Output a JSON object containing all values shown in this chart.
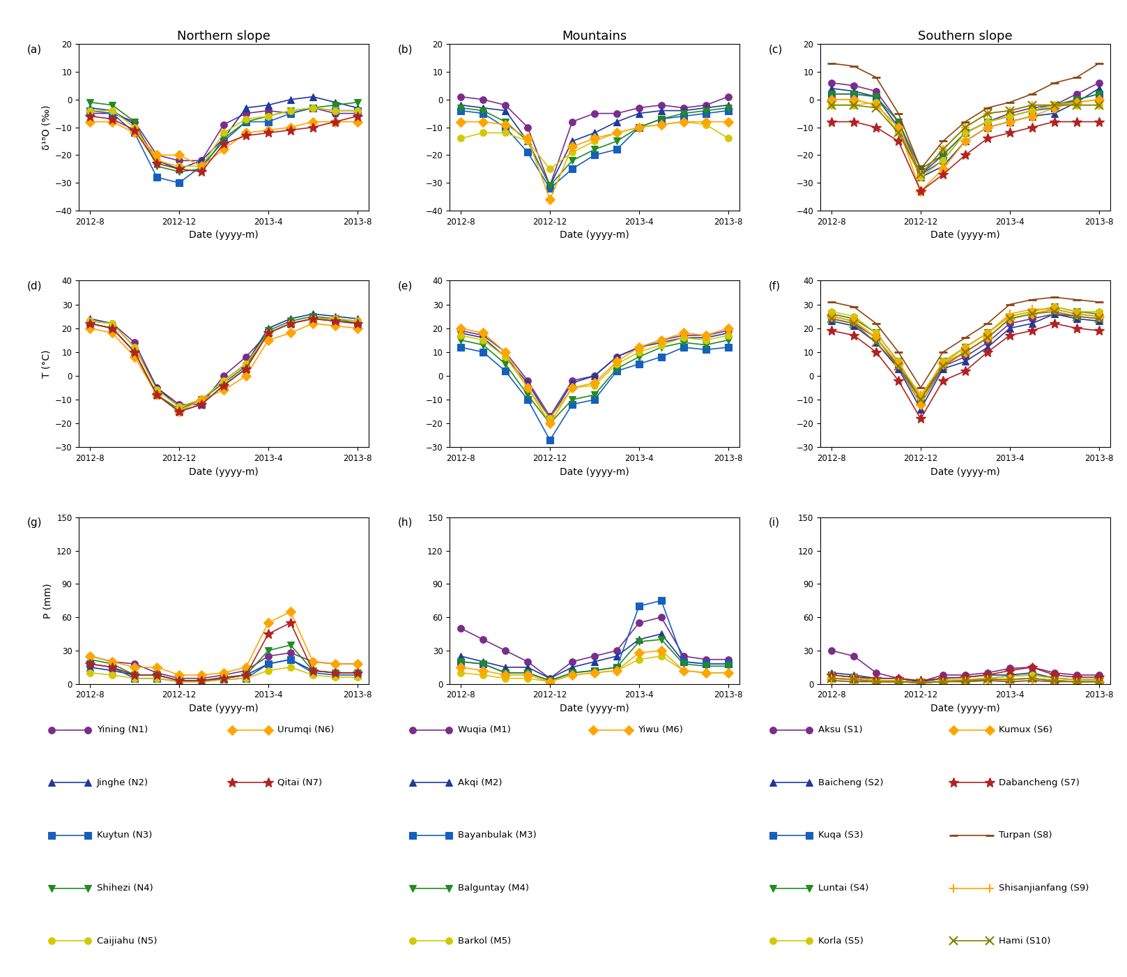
{
  "xtick_labels": [
    "2012-8",
    "2012-12",
    "2013-4",
    "2013-8"
  ],
  "col_titles": [
    "Northern slope",
    "Mountains",
    "Southern slope"
  ],
  "northern": [
    {
      "name": "Yining (N1)",
      "color": "#7B2D8B",
      "marker": "o",
      "d18O": [
        -5,
        -5,
        -8,
        -20,
        -22,
        -22,
        -9,
        -5,
        -4,
        -5,
        -3,
        -5,
        -5
      ],
      "T": [
        23,
        22,
        14,
        -5,
        -12,
        -12,
        0,
        8,
        18,
        22,
        24,
        24,
        23
      ],
      "P": [
        25,
        20,
        18,
        10,
        5,
        5,
        8,
        12,
        25,
        28,
        20,
        18,
        18
      ]
    },
    {
      "name": "Jinghe (N2)",
      "color": "#1F3A9A",
      "marker": "^",
      "d18O": [
        -3,
        -4,
        -9,
        -22,
        -25,
        -22,
        -14,
        -3,
        -2,
        0,
        1,
        -1,
        -3
      ],
      "T": [
        24,
        22,
        12,
        -5,
        -13,
        -10,
        -2,
        5,
        20,
        24,
        26,
        25,
        24
      ],
      "P": [
        15,
        12,
        8,
        8,
        3,
        3,
        5,
        8,
        18,
        22,
        12,
        10,
        10
      ]
    },
    {
      "name": "Kuytun (N3)",
      "color": "#1560BD",
      "marker": "s",
      "d18O": [
        -4,
        -5,
        -12,
        -28,
        -30,
        -24,
        -15,
        -8,
        -8,
        -5,
        -3,
        -4,
        -4
      ],
      "T": [
        22,
        20,
        10,
        -8,
        -15,
        -12,
        -4,
        3,
        18,
        22,
        24,
        23,
        22
      ],
      "P": [
        18,
        15,
        5,
        5,
        2,
        2,
        4,
        5,
        18,
        22,
        10,
        8,
        8
      ]
    },
    {
      "name": "Shihezi (N4)",
      "color": "#228B22",
      "marker": "v",
      "d18O": [
        -1,
        -2,
        -8,
        -24,
        -26,
        -25,
        -14,
        -8,
        -6,
        -4,
        -3,
        -2,
        -1
      ],
      "T": [
        22,
        20,
        10,
        -8,
        -14,
        -10,
        -3,
        4,
        19,
        23,
        25,
        24,
        22
      ],
      "P": [
        22,
        18,
        8,
        8,
        3,
        3,
        6,
        8,
        30,
        35,
        12,
        10,
        10
      ]
    },
    {
      "name": "Caijiahu (N5)",
      "color": "#D4C800",
      "marker": "o",
      "d18O": [
        -4,
        -4,
        -10,
        -22,
        -24,
        -24,
        -12,
        -7,
        -6,
        -4,
        -3,
        -4,
        -4
      ],
      "T": [
        23,
        22,
        12,
        -6,
        -13,
        -10,
        -2,
        5,
        18,
        22,
        24,
        24,
        23
      ],
      "P": [
        10,
        8,
        5,
        5,
        2,
        2,
        4,
        5,
        12,
        15,
        8,
        6,
        6
      ]
    },
    {
      "name": "Urumqi (N6)",
      "color": "#FFA500",
      "marker": "D",
      "d18O": [
        -8,
        -8,
        -12,
        -20,
        -20,
        -24,
        -18,
        -12,
        -11,
        -10,
        -8,
        -8,
        -8
      ],
      "T": [
        20,
        18,
        8,
        -8,
        -15,
        -10,
        -6,
        0,
        15,
        18,
        22,
        21,
        20
      ],
      "P": [
        25,
        20,
        15,
        15,
        8,
        8,
        10,
        15,
        55,
        65,
        20,
        18,
        18
      ]
    },
    {
      "name": "Qitai (N7)",
      "color": "#B22222",
      "marker": "*",
      "d18O": [
        -6,
        -7,
        -11,
        -23,
        -25,
        -26,
        -16,
        -13,
        -12,
        -11,
        -10,
        -8,
        -6
      ],
      "T": [
        22,
        20,
        10,
        -8,
        -15,
        -12,
        -4,
        3,
        18,
        22,
        24,
        23,
        22
      ],
      "P": [
        18,
        15,
        8,
        8,
        3,
        3,
        5,
        8,
        45,
        55,
        12,
        10,
        10
      ]
    }
  ],
  "mountain": [
    {
      "name": "Wuqia (M1)",
      "color": "#7B2D8B",
      "marker": "o",
      "d18O": [
        1,
        0,
        -2,
        -10,
        -31,
        -8,
        -5,
        -5,
        -3,
        -2,
        -3,
        -2,
        1
      ],
      "T": [
        19,
        17,
        10,
        -2,
        -17,
        -2,
        0,
        8,
        12,
        15,
        17,
        17,
        19
      ],
      "P": [
        50,
        40,
        30,
        20,
        5,
        20,
        25,
        30,
        55,
        60,
        25,
        22,
        22
      ]
    },
    {
      "name": "Akqi (M2)",
      "color": "#1F3A9A",
      "marker": "^",
      "d18O": [
        -2,
        -3,
        -4,
        -15,
        -31,
        -15,
        -12,
        -8,
        -5,
        -4,
        -4,
        -3,
        -2
      ],
      "T": [
        18,
        16,
        8,
        -3,
        -18,
        -3,
        0,
        8,
        12,
        14,
        16,
        16,
        18
      ],
      "P": [
        25,
        20,
        15,
        15,
        5,
        15,
        20,
        25,
        40,
        45,
        20,
        18,
        18
      ]
    },
    {
      "name": "Bayanbulak (M3)",
      "color": "#1560BD",
      "marker": "s",
      "d18O": [
        -4,
        -5,
        -10,
        -19,
        -32,
        -25,
        -20,
        -18,
        -10,
        -7,
        -6,
        -5,
        -4
      ],
      "T": [
        12,
        10,
        2,
        -10,
        -27,
        -12,
        -10,
        2,
        5,
        8,
        12,
        11,
        12
      ],
      "P": [
        20,
        18,
        10,
        10,
        3,
        10,
        12,
        15,
        70,
        75,
        20,
        18,
        18
      ]
    },
    {
      "name": "Balguntay (M4)",
      "color": "#228B22",
      "marker": "v",
      "d18O": [
        -3,
        -4,
        -8,
        -15,
        -31,
        -22,
        -18,
        -15,
        -10,
        -7,
        -5,
        -4,
        -3
      ],
      "T": [
        15,
        13,
        5,
        -8,
        -20,
        -10,
        -8,
        3,
        8,
        12,
        14,
        13,
        15
      ],
      "P": [
        20,
        18,
        10,
        10,
        3,
        10,
        12,
        15,
        38,
        40,
        18,
        16,
        16
      ]
    },
    {
      "name": "Barkol (M5)",
      "color": "#D4C800",
      "marker": "o",
      "d18O": [
        -14,
        -12,
        -12,
        -15,
        -25,
        -19,
        -15,
        -12,
        -10,
        -9,
        -8,
        -9,
        -14
      ],
      "T": [
        17,
        15,
        8,
        -5,
        -18,
        -5,
        -4,
        5,
        10,
        13,
        16,
        15,
        17
      ],
      "P": [
        10,
        8,
        5,
        5,
        2,
        8,
        10,
        12,
        22,
        25,
        12,
        10,
        10
      ]
    },
    {
      "name": "Yiwu (M6)",
      "color": "#FFA500",
      "marker": "D",
      "d18O": [
        -8,
        -8,
        -9,
        -14,
        -36,
        -17,
        -14,
        -12,
        -10,
        -9,
        -8,
        -8,
        -8
      ],
      "T": [
        20,
        18,
        10,
        -5,
        -20,
        -5,
        -3,
        6,
        12,
        15,
        18,
        17,
        20
      ],
      "P": [
        15,
        12,
        8,
        8,
        2,
        8,
        10,
        12,
        28,
        30,
        12,
        10,
        10
      ]
    }
  ],
  "southern": [
    {
      "name": "Aksu (S1)",
      "color": "#7B2D8B",
      "marker": "o",
      "d18O": [
        6,
        5,
        3,
        -8,
        -27,
        -20,
        -12,
        -8,
        -5,
        -3,
        -2,
        2,
        6
      ],
      "T": [
        24,
        22,
        16,
        4,
        -12,
        4,
        8,
        14,
        22,
        24,
        26,
        25,
        24
      ],
      "P": [
        30,
        25,
        10,
        5,
        2,
        8,
        8,
        10,
        14,
        15,
        10,
        8,
        8
      ]
    },
    {
      "name": "Baicheng (S2)",
      "color": "#1F3A9A",
      "marker": "^",
      "d18O": [
        4,
        3,
        1,
        -10,
        -28,
        -24,
        -15,
        -10,
        -8,
        -6,
        -5,
        -1,
        4
      ],
      "T": [
        23,
        21,
        14,
        3,
        -14,
        3,
        6,
        12,
        20,
        22,
        26,
        24,
        23
      ],
      "P": [
        10,
        8,
        5,
        5,
        2,
        5,
        6,
        8,
        8,
        10,
        5,
        4,
        4
      ]
    },
    {
      "name": "Kuqa (S3)",
      "color": "#1560BD",
      "marker": "s",
      "d18O": [
        2,
        2,
        1,
        -10,
        -27,
        -22,
        -12,
        -8,
        -6,
        -4,
        -3,
        0,
        2
      ],
      "T": [
        25,
        23,
        16,
        5,
        -10,
        5,
        10,
        16,
        24,
        26,
        28,
        26,
        25
      ],
      "P": [
        8,
        6,
        3,
        3,
        1,
        3,
        4,
        5,
        7,
        8,
        5,
        4,
        4
      ]
    },
    {
      "name": "Luntai (S4)",
      "color": "#228B22",
      "marker": "v",
      "d18O": [
        2,
        2,
        1,
        -8,
        -25,
        -20,
        -12,
        -8,
        -6,
        -4,
        -2,
        0,
        2
      ],
      "T": [
        26,
        24,
        18,
        6,
        -10,
        6,
        12,
        18,
        25,
        27,
        29,
        27,
        26
      ],
      "P": [
        5,
        4,
        2,
        2,
        1,
        2,
        3,
        4,
        4,
        5,
        3,
        2,
        2
      ]
    },
    {
      "name": "Korla (S5)",
      "color": "#D4C800",
      "marker": "o",
      "d18O": [
        -2,
        -2,
        -1,
        -12,
        -28,
        -22,
        -12,
        -8,
        -6,
        -4,
        -2,
        -2,
        -2
      ],
      "T": [
        27,
        25,
        18,
        6,
        -9,
        6,
        12,
        18,
        25,
        27,
        29,
        27,
        27
      ],
      "P": [
        8,
        6,
        3,
        3,
        1,
        3,
        4,
        5,
        7,
        8,
        5,
        4,
        4
      ]
    },
    {
      "name": "Kumux (S6)",
      "color": "#FFA500",
      "marker": "D",
      "d18O": [
        0,
        0,
        -2,
        -10,
        -33,
        -25,
        -15,
        -10,
        -8,
        -6,
        -3,
        -1,
        0
      ],
      "T": [
        25,
        23,
        16,
        5,
        -12,
        5,
        10,
        16,
        24,
        26,
        28,
        26,
        25
      ],
      "P": [
        5,
        4,
        2,
        2,
        1,
        2,
        3,
        4,
        4,
        5,
        3,
        2,
        2
      ]
    },
    {
      "name": "Dabancheng (S7)",
      "color": "#B22222",
      "marker": "*",
      "d18O": [
        -8,
        -8,
        -10,
        -15,
        -33,
        -27,
        -20,
        -14,
        -12,
        -10,
        -8,
        -8,
        -8
      ],
      "T": [
        19,
        17,
        10,
        -2,
        -18,
        -2,
        2,
        10,
        17,
        19,
        22,
        20,
        19
      ],
      "P": [
        8,
        6,
        5,
        5,
        3,
        5,
        6,
        8,
        12,
        15,
        8,
        6,
        6
      ]
    },
    {
      "name": "Turpan (S8)",
      "color": "#8B4513",
      "marker": "_",
      "d18O": [
        13,
        12,
        8,
        -5,
        -25,
        -15,
        -8,
        -3,
        -1,
        2,
        6,
        8,
        13
      ],
      "T": [
        31,
        29,
        22,
        10,
        -5,
        10,
        16,
        22,
        30,
        32,
        33,
        32,
        31
      ],
      "P": [
        3,
        2,
        2,
        2,
        1,
        2,
        2,
        3,
        2,
        3,
        2,
        2,
        2
      ]
    },
    {
      "name": "Shisanjianfang (S9)",
      "color": "#FFA500",
      "marker": "+",
      "d18O": [
        0,
        0,
        -2,
        -10,
        -27,
        -18,
        -10,
        -5,
        -4,
        -2,
        -2,
        -1,
        0
      ],
      "T": [
        25,
        23,
        16,
        5,
        -8,
        5,
        12,
        18,
        26,
        28,
        28,
        26,
        25
      ],
      "P": [
        5,
        4,
        2,
        2,
        1,
        2,
        3,
        4,
        4,
        5,
        3,
        2,
        2
      ]
    },
    {
      "name": "Hami (S10)",
      "color": "#808000",
      "marker": "x",
      "d18O": [
        -2,
        -2,
        -3,
        -12,
        -27,
        -18,
        -10,
        -5,
        -4,
        -2,
        -2,
        -2,
        -2
      ],
      "T": [
        24,
        22,
        14,
        4,
        -10,
        4,
        10,
        16,
        24,
        26,
        27,
        25,
        24
      ],
      "P": [
        5,
        4,
        2,
        2,
        1,
        2,
        3,
        4,
        4,
        5,
        3,
        2,
        2
      ]
    }
  ],
  "legend_col1": [
    [
      "Yining (N1)",
      "#7B2D8B",
      "o"
    ],
    [
      "Jinghe (N2)",
      "#1F3A9A",
      "^"
    ],
    [
      "Kuytun (N3)",
      "#1560BD",
      "s"
    ],
    [
      "Shihezi (N4)",
      "#228B22",
      "v"
    ],
    [
      "Caijiahu (N5)",
      "#D4C800",
      "o"
    ]
  ],
  "legend_col2": [
    [
      "Urumqi (N6)",
      "#FFA500",
      "D"
    ],
    [
      "Qitai (N7)",
      "#B22222",
      "*"
    ],
    null,
    null,
    null
  ],
  "legend_col3": [
    [
      "Wuqia (M1)",
      "#7B2D8B",
      "o"
    ],
    [
      "Akqi (M2)",
      "#1F3A9A",
      "^"
    ],
    [
      "Bayanbulak (M3)",
      "#1560BD",
      "s"
    ],
    [
      "Balguntay (M4)",
      "#228B22",
      "v"
    ],
    [
      "Barkol (M5)",
      "#D4C800",
      "o"
    ]
  ],
  "legend_col4": [
    [
      "Yiwu (M6)",
      "#FFA500",
      "D"
    ],
    null,
    null,
    null,
    null
  ],
  "legend_col5": [
    [
      "Aksu (S1)",
      "#7B2D8B",
      "o"
    ],
    [
      "Baicheng (S2)",
      "#1F3A9A",
      "^"
    ],
    [
      "Kuqa (S3)",
      "#1560BD",
      "s"
    ],
    [
      "Luntai (S4)",
      "#228B22",
      "v"
    ],
    [
      "Korla (S5)",
      "#D4C800",
      "o"
    ]
  ],
  "legend_col6": [
    [
      "Kumux (S6)",
      "#FFA500",
      "D"
    ],
    [
      "Dabancheng (S7)",
      "#B22222",
      "*"
    ],
    [
      "Turpan (S8)",
      "#8B4513",
      "_"
    ],
    [
      "Shisanjianfang (S9)",
      "#FFA500",
      "+"
    ],
    [
      "Hami (S10)",
      "#808000",
      "x"
    ]
  ]
}
